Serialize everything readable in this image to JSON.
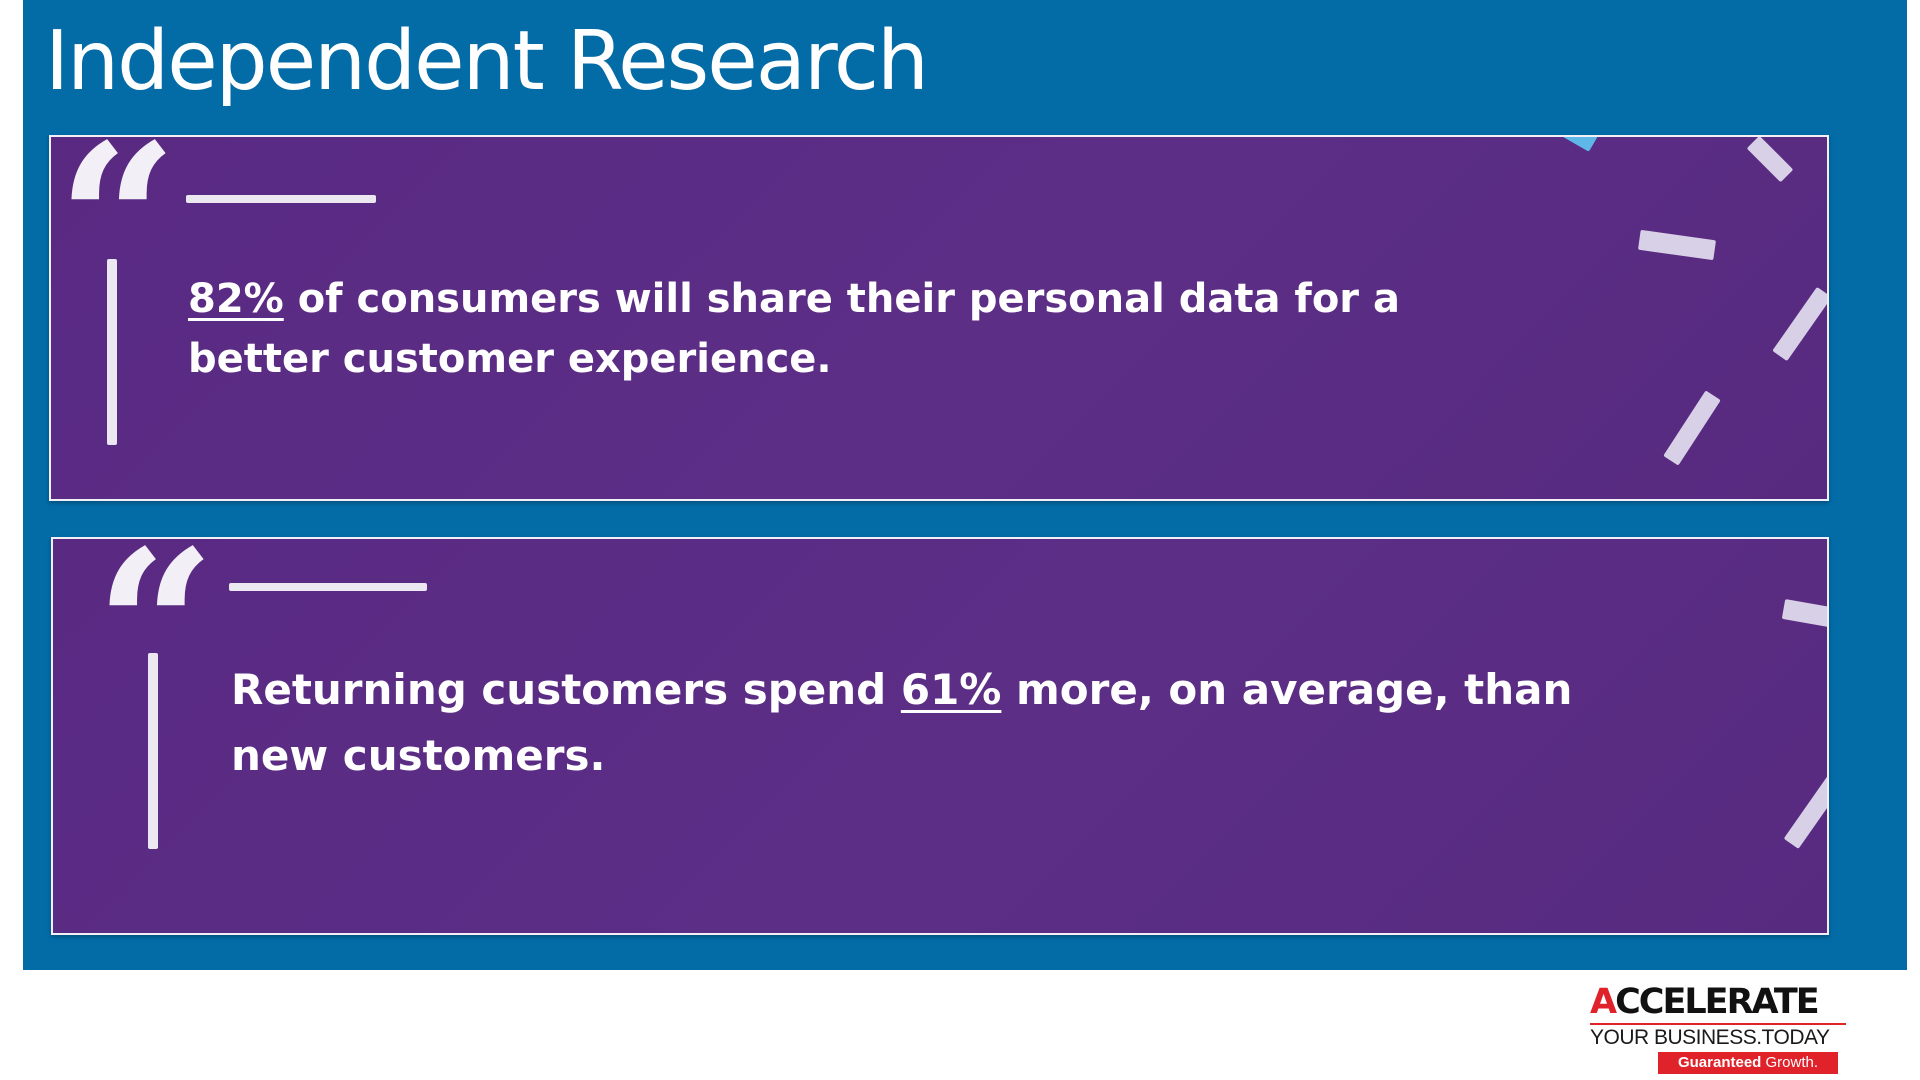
{
  "slide": {
    "title": "Independent Research"
  },
  "cards": [
    {
      "stat": "82%",
      "text_after": "of consumers will share their personal data for a better customer experience."
    },
    {
      "text_before": "Returning customers spend",
      "stat": "61%",
      "text_after": "more, on average, than new customers."
    }
  ],
  "logo": {
    "accent_letter": "A",
    "main_rest": "CCELERATE",
    "subline": "YOUR BUSINESS.TODAY",
    "tag_bold": "Guaranteed",
    "tag_rest": "Growth."
  },
  "colors": {
    "panel_blue": "#036ba6",
    "card_purple": "#5a2a83",
    "logo_red": "#e0222a"
  },
  "icons": {
    "quote": "open-double-quote-icon"
  }
}
